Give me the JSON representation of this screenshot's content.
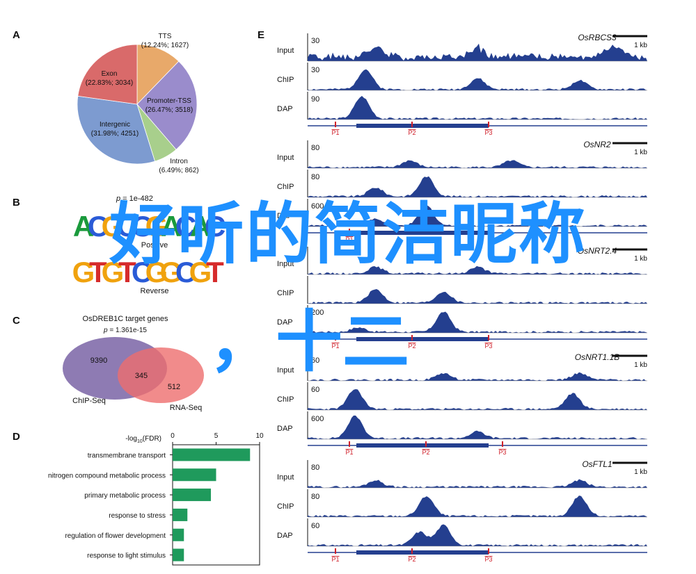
{
  "panels": {
    "a": "A",
    "b": "B",
    "c": "C",
    "d": "D",
    "e": "E"
  },
  "pie": {
    "slices": [
      {
        "name": "TTS",
        "value_label": "(12.24%; 1627)",
        "pct": 12.24,
        "color": "#e8a96a"
      },
      {
        "name": "Promoter-TSS",
        "value_label": "(26.47%; 3518)",
        "pct": 26.47,
        "color": "#9a8ccc"
      },
      {
        "name": "Intron",
        "value_label": "(6.49%; 862)",
        "pct": 6.49,
        "color": "#a8cf8c"
      },
      {
        "name": "Intergenic",
        "value_label": "(31.98%; 4251)",
        "pct": 31.98,
        "color": "#7d9bd0"
      },
      {
        "name": "Exon",
        "value_label": "(22.83%; 3034)",
        "pct": 22.83,
        "color": "#d96a6a"
      }
    ]
  },
  "motif": {
    "p_prefix": "p",
    "p_value": " = 1e-482",
    "positive_label": "Positive",
    "reverse_label": "Reverse",
    "positive_seq": "ACGCCGACAC",
    "reverse_seq": "GTGTCGGCGT"
  },
  "venn": {
    "title": "OsDREB1C target genes",
    "p_prefix": "p",
    "p_value": " = 1.361e-15",
    "left_count": "9390",
    "overlap_count": "345",
    "right_count": "512",
    "left_label": "ChIP-Seq",
    "right_label": "RNA-Seq",
    "left_color": "#7a64a6",
    "right_color": "#ee6e6e"
  },
  "chart_data": {
    "type": "bar",
    "orientation": "horizontal",
    "xlabel_prefix": "-log",
    "xlabel_sub": "10",
    "xlabel_suffix": "(FDR)",
    "xlim": [
      0,
      10
    ],
    "xticks": [
      "0",
      "5",
      "10"
    ],
    "categories": [
      "transmembrane transport",
      "nitrogen compound metabolic process",
      "primary metabolic process",
      "response to stress",
      "regulation of flower development",
      "response to light stimulus"
    ],
    "values": [
      8.9,
      5.0,
      4.4,
      1.7,
      1.3,
      1.3
    ],
    "bar_color": "#1f9a5c"
  },
  "tracks": {
    "track_labels": [
      "Input",
      "ChIP",
      "DAP"
    ],
    "scale_label": "1 kb",
    "signal_color": "#243f8f",
    "genes": [
      {
        "name": "OsRBCS3",
        "scales": [
          "30",
          "30",
          "90"
        ],
        "peaks": [
          "P1",
          "P2",
          "P3"
        ]
      },
      {
        "name": "OsNR2",
        "scales": [
          "80",
          "80",
          "600"
        ],
        "peaks": [
          "P1"
        ]
      },
      {
        "name": "OsNRT2.4",
        "scales": [
          "",
          "",
          "200"
        ],
        "peaks": [
          "P1",
          "P2",
          "P3"
        ]
      },
      {
        "name": "OsNRT1.1B",
        "scales": [
          "60",
          "60",
          "600"
        ],
        "peaks": [
          "P1",
          "P2",
          "P3"
        ]
      },
      {
        "name": "OsFTL1",
        "scales": [
          "80",
          "80",
          "60"
        ],
        "peaks": [
          "P1",
          "P2",
          "P3"
        ]
      }
    ]
  },
  "overlay": {
    "title": "好听的简洁昵称",
    "subtitle": "，十二"
  }
}
